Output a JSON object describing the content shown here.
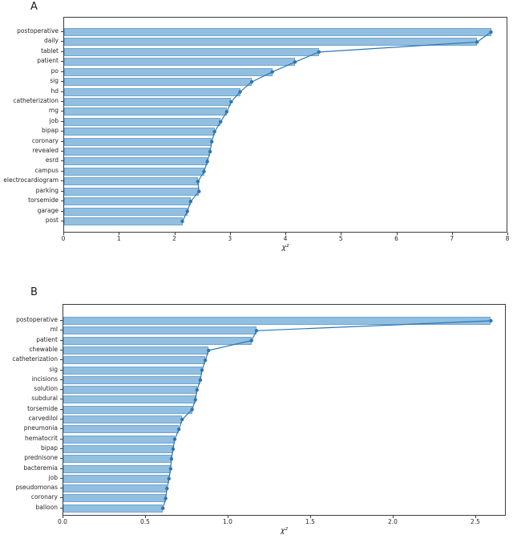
{
  "figure": {
    "background": "#ffffff",
    "description_colors": {
      "bar_fill": "#92bfe0",
      "line": "#2878b8",
      "axis": "#3d3d3d",
      "text": "#262626"
    }
  },
  "chart_data": [
    {
      "type": "bar",
      "orientation": "horizontal",
      "panel_label": "A",
      "title": "",
      "xlabel": "χ²",
      "ylabel": "",
      "grid": false,
      "line_overlay_with_markers": true,
      "categories": [
        "postoperative",
        "daily",
        "tablet",
        "patient",
        "po",
        "sig",
        "hd",
        "catheterization",
        "mg",
        "job",
        "bipap",
        "coronary",
        "revealed",
        "esrd",
        "campus",
        "electrocardiogram",
        "parking",
        "torsemide",
        "garage",
        "post"
      ],
      "values": [
        7.69,
        7.44,
        4.59,
        4.16,
        3.75,
        3.38,
        3.17,
        3.01,
        2.93,
        2.82,
        2.71,
        2.66,
        2.63,
        2.58,
        2.52,
        2.41,
        2.43,
        2.28,
        2.22,
        2.13
      ],
      "xlim": [
        0,
        8.0
      ],
      "xticks": {
        "values": [
          0,
          1,
          2,
          3,
          4,
          5,
          6,
          7,
          8
        ],
        "labels": [
          "0",
          "1",
          "2",
          "3",
          "4",
          "5",
          "6",
          "7",
          "8"
        ]
      },
      "colors": {
        "bar": "#92bfe0",
        "line": "#2878b8"
      }
    },
    {
      "type": "bar",
      "orientation": "horizontal",
      "panel_label": "B",
      "title": "",
      "xlabel": "χ²",
      "ylabel": "",
      "grid": false,
      "line_overlay_with_markers": true,
      "categories": [
        "postoperative",
        "ml",
        "patient",
        "chewable",
        "catheterization",
        "sig",
        "incisions",
        "solution",
        "subdural",
        "torsemide",
        "carvedilol",
        "pneumonia",
        "hematocrit",
        "bipap",
        "prednisone",
        "bacteremia",
        "job",
        "pseudomonas",
        "coronary",
        "balloon"
      ],
      "values": [
        2.59,
        1.17,
        1.14,
        0.88,
        0.86,
        0.84,
        0.83,
        0.81,
        0.8,
        0.78,
        0.72,
        0.7,
        0.675,
        0.665,
        0.655,
        0.65,
        0.64,
        0.628,
        0.62,
        0.603
      ],
      "xlim": [
        0,
        2.685
      ],
      "xticks": {
        "values": [
          0,
          0.5,
          1.0,
          1.5,
          2.0,
          2.5
        ],
        "labels": [
          "0.0",
          "0.5",
          "1.0",
          "1.5",
          "2.0",
          "2.5"
        ]
      },
      "colors": {
        "bar": "#92bfe0",
        "line": "#2878b8"
      }
    }
  ]
}
